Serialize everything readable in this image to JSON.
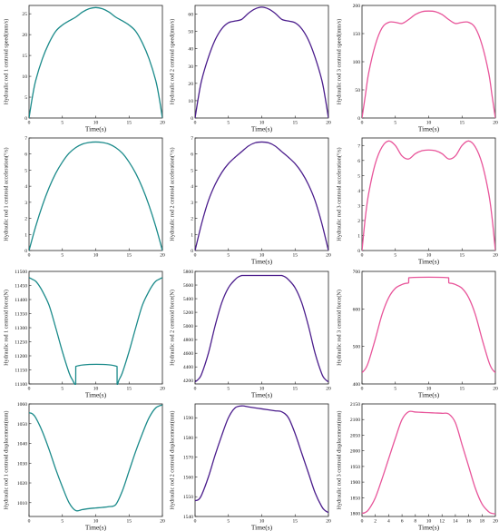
{
  "chart_data": [
    {
      "type": "line",
      "xlabel": "Time(s)",
      "ylabel": "Hydraulic rod 1 centroid speed(mm/s)",
      "color": "#1a8a8a",
      "xlim": [
        0,
        20
      ],
      "ylim": [
        0,
        27
      ],
      "xticks": [
        0,
        5,
        10,
        15,
        20
      ],
      "yticks": [
        0,
        5,
        10,
        15,
        20,
        25
      ],
      "x": [
        0,
        0.5,
        1,
        2,
        3,
        4,
        5,
        6,
        7,
        8,
        9,
        10,
        11,
        12,
        13,
        14,
        15,
        16,
        17,
        18,
        19,
        19.5,
        20
      ],
      "y": [
        0,
        5,
        9,
        14.2,
        18,
        20.8,
        22.3,
        23.3,
        24.2,
        25.4,
        26.2,
        26.5,
        26.2,
        25.4,
        24.2,
        23.3,
        22.3,
        20.8,
        18,
        14.2,
        9,
        5,
        0
      ]
    },
    {
      "type": "line",
      "xlabel": "Time(s)",
      "ylabel": "Hydraulic rod 2 centroid speed(mm/s)",
      "color": "#4b1d8c",
      "xlim": [
        0,
        20
      ],
      "ylim": [
        0,
        65
      ],
      "xticks": [
        0,
        5,
        10,
        15,
        20
      ],
      "yticks": [
        0,
        10,
        20,
        30,
        40,
        50,
        60
      ],
      "x": [
        0,
        0.5,
        1,
        2,
        3,
        4,
        5,
        6,
        7,
        8,
        9,
        10,
        11,
        12,
        13,
        14,
        15,
        16,
        17,
        18,
        19,
        19.5,
        20
      ],
      "y": [
        0,
        12,
        22,
        35,
        45,
        51.5,
        55,
        56,
        57,
        60.5,
        63,
        64,
        63,
        60.5,
        57,
        56,
        55,
        51.5,
        45,
        35,
        22,
        12,
        0
      ]
    },
    {
      "type": "line",
      "xlabel": "Time(s)",
      "ylabel": "Hydraulic rod 3 centroid speed(mm/s)",
      "color": "#e8559a",
      "xlim": [
        0,
        20
      ],
      "ylim": [
        0,
        200
      ],
      "xticks": [
        0,
        5,
        10,
        15,
        20
      ],
      "yticks": [
        0,
        50,
        100,
        150,
        200
      ],
      "x": [
        0,
        0.5,
        1,
        2,
        3,
        4,
        5,
        6,
        7,
        8,
        9,
        10,
        11,
        12,
        13,
        14,
        15,
        16,
        17,
        18,
        19,
        19.5,
        20
      ],
      "y": [
        0,
        40,
        80,
        130,
        160,
        170,
        170,
        168,
        175,
        184,
        189,
        190,
        189,
        184,
        175,
        168,
        170,
        170,
        160,
        130,
        80,
        40,
        0
      ]
    },
    {
      "type": "line",
      "xlabel": "",
      "ylabel": "Hydraulic rod 1 centroid acceleration(°/s)",
      "color": "#1a8a8a",
      "xlim": [
        0,
        20
      ],
      "ylim": [
        0,
        7
      ],
      "xticks": [
        0,
        5,
        10,
        15,
        20
      ],
      "yticks": [
        0,
        1,
        2,
        3,
        4,
        5,
        6,
        7
      ],
      "x": [
        0,
        1,
        2,
        3,
        4,
        5,
        6,
        7,
        8,
        9,
        10,
        11,
        12,
        13,
        14,
        15,
        16,
        17,
        18,
        19,
        20
      ],
      "y": [
        0,
        1.5,
        2.8,
        3.9,
        4.8,
        5.5,
        6.05,
        6.4,
        6.62,
        6.72,
        6.75,
        6.72,
        6.62,
        6.4,
        6.05,
        5.5,
        4.8,
        3.9,
        2.8,
        1.5,
        0
      ]
    },
    {
      "type": "line",
      "xlabel": "Time(s)",
      "ylabel": "Hydraulic rod 2 centroid acceleration(°/s)",
      "color": "#4b1d8c",
      "xlim": [
        0,
        20
      ],
      "ylim": [
        0,
        7
      ],
      "xticks": [
        0,
        5,
        10,
        15,
        20
      ],
      "yticks": [
        0,
        1,
        2,
        3,
        4,
        5,
        6,
        7
      ],
      "x": [
        0,
        1,
        2,
        3,
        4,
        5,
        6,
        7,
        8,
        9,
        10,
        11,
        12,
        13,
        14,
        15,
        16,
        17,
        18,
        19,
        20
      ],
      "y": [
        0,
        1.7,
        3.1,
        4.1,
        4.85,
        5.4,
        5.8,
        6.15,
        6.5,
        6.7,
        6.75,
        6.7,
        6.5,
        6.15,
        5.8,
        5.4,
        4.85,
        4.1,
        3.1,
        1.7,
        0
      ]
    },
    {
      "type": "line",
      "xlabel": "Time(s)",
      "ylabel": "Hydraulic rod 3 centroid acceleration(°/s)",
      "color": "#e8559a",
      "xlim": [
        0,
        20
      ],
      "ylim": [
        0,
        7.5
      ],
      "xticks": [
        0,
        5,
        10,
        15,
        20
      ],
      "yticks": [
        0,
        1,
        2,
        3,
        4,
        5,
        6,
        7
      ],
      "x": [
        0,
        0.5,
        1,
        2,
        3,
        4,
        5,
        6,
        7,
        8,
        9,
        10,
        11,
        12,
        13,
        14,
        15,
        16,
        17,
        18,
        19,
        19.5,
        20
      ],
      "y": [
        0,
        2.2,
        3.8,
        5.8,
        6.9,
        7.3,
        7.0,
        6.3,
        6.1,
        6.45,
        6.65,
        6.7,
        6.65,
        6.45,
        6.1,
        6.3,
        7.0,
        7.3,
        6.9,
        5.8,
        3.8,
        2.2,
        0
      ]
    },
    {
      "type": "line",
      "xlabel": "Time(s)",
      "ylabel": "Hydraulic rod 1 centroid force(N)",
      "color": "#1a8a8a",
      "xlim": [
        0,
        20
      ],
      "ylim": [
        11100,
        11500
      ],
      "xticks": [
        0,
        5,
        10,
        15,
        20
      ],
      "yticks": [
        11100,
        11150,
        11200,
        11250,
        11300,
        11350,
        11400,
        11450,
        11500
      ],
      "x": [
        0,
        0.5,
        1,
        1.5,
        2,
        3,
        4,
        5,
        6,
        6.5,
        7,
        7.01,
        13.2,
        13.21,
        13.5,
        14,
        15,
        16,
        17,
        18,
        18.5,
        19,
        19.5,
        20
      ],
      "y": [
        11478,
        11472,
        11465,
        11450,
        11430,
        11380,
        11300,
        11215,
        11140,
        11115,
        11100,
        11162,
        11162,
        11100,
        11115,
        11140,
        11215,
        11300,
        11380,
        11430,
        11450,
        11465,
        11472,
        11478
      ]
    },
    {
      "type": "line",
      "xlabel": "Time(s)",
      "ylabel": "Hydraulic rod 2 centroid force(N)",
      "color": "#4b1d8c",
      "xlim": [
        0,
        20
      ],
      "ylim": [
        4150,
        5800
      ],
      "xticks": [
        0,
        5,
        10,
        15,
        20
      ],
      "yticks": [
        4200,
        4400,
        4600,
        4800,
        5000,
        5200,
        5400,
        5600,
        5800
      ],
      "x": [
        0,
        0.5,
        1,
        2,
        3,
        4,
        5,
        6,
        6.5,
        7,
        7.01,
        13,
        13.01,
        13.5,
        14,
        15,
        16,
        17,
        18,
        19,
        19.5,
        20
      ],
      "y": [
        4180,
        4220,
        4300,
        4600,
        5000,
        5340,
        5560,
        5680,
        5720,
        5740,
        5740,
        5740,
        5740,
        5720,
        5680,
        5560,
        5340,
        5000,
        4600,
        4300,
        4220,
        4180
      ]
    },
    {
      "type": "line",
      "xlabel": "Time(s)",
      "ylabel": "Hydraulic rod 3 centroid force(N)",
      "color": "#e8559a",
      "xlim": [
        0,
        20
      ],
      "ylim": [
        400,
        700
      ],
      "xticks": [
        0,
        5,
        10,
        15,
        20
      ],
      "yticks": [
        400,
        500,
        600,
        700
      ],
      "x": [
        0,
        0.5,
        1,
        2,
        3,
        4,
        5,
        6,
        6.5,
        7,
        7.01,
        13,
        13.01,
        13.5,
        14,
        15,
        16,
        17,
        18,
        19,
        19.5,
        20
      ],
      "y": [
        430,
        440,
        460,
        520,
        585,
        630,
        655,
        665,
        668,
        670,
        683,
        683,
        670,
        668,
        665,
        655,
        630,
        585,
        520,
        460,
        440,
        430
      ]
    },
    {
      "type": "line",
      "xlabel": "Time(s)",
      "ylabel": "Hydraulic rod 1 centroid displacement(mm)",
      "color": "#1a8a8a",
      "xlim": [
        0,
        20
      ],
      "ylim": [
        1003,
        1060
      ],
      "xticks": [
        0,
        5,
        10,
        15,
        20
      ],
      "yticks": [
        1010,
        1020,
        1030,
        1040,
        1050,
        1060
      ],
      "x": [
        0,
        0.5,
        1,
        2,
        3,
        4,
        5,
        6,
        7,
        8,
        9,
        10,
        11,
        12,
        13,
        14,
        15,
        16,
        17,
        18,
        19,
        20
      ],
      "y": [
        1055.5,
        1055,
        1053,
        1046,
        1037,
        1027,
        1018,
        1010,
        1006,
        1006.5,
        1007,
        1007.3,
        1007.6,
        1008,
        1009,
        1016,
        1026,
        1036,
        1045,
        1053,
        1058,
        1059.5
      ]
    },
    {
      "type": "line",
      "xlabel": "Time(s)",
      "ylabel": "Hydraulic rod 2 centroid displacement(mm)",
      "color": "#4b1d8c",
      "xlim": [
        0,
        20
      ],
      "ylim": [
        1540,
        1597
      ],
      "xticks": [
        0,
        5,
        10,
        15,
        20
      ],
      "yticks": [
        1540,
        1550,
        1560,
        1570,
        1580,
        1590
      ],
      "x": [
        0,
        0.5,
        1,
        2,
        3,
        4,
        5,
        6,
        7,
        8,
        9,
        10,
        11,
        12,
        13,
        14,
        15,
        16,
        17,
        18,
        19,
        19.5,
        20
      ],
      "y": [
        1548,
        1548.5,
        1551,
        1560,
        1571,
        1581,
        1590,
        1595,
        1596,
        1595.5,
        1595,
        1594.5,
        1594,
        1593.5,
        1593,
        1590,
        1582,
        1572,
        1562,
        1552,
        1545,
        1543,
        1542
      ]
    },
    {
      "type": "line",
      "xlabel": "Time(s)",
      "ylabel": "Hydraulic rod 3 centroid displacement(mm)",
      "color": "#e8559a",
      "xlim": [
        0,
        20
      ],
      "ylim": [
        1790,
        2150
      ],
      "xticks": [
        0,
        2,
        4,
        6,
        8,
        10,
        12,
        14,
        16,
        18,
        20
      ],
      "yticks": [
        1800,
        1850,
        1900,
        1950,
        2000,
        2050,
        2100,
        2150
      ],
      "x": [
        0,
        0.5,
        1,
        2,
        3,
        4,
        5,
        6,
        7,
        8,
        9,
        10,
        11,
        12,
        13,
        14,
        15,
        16,
        17,
        18,
        19,
        19.5,
        20
      ],
      "y": [
        1800,
        1803,
        1812,
        1850,
        1910,
        1975,
        2040,
        2100,
        2125,
        2124,
        2123,
        2122,
        2121,
        2120,
        2118,
        2090,
        2020,
        1950,
        1880,
        1830,
        1805,
        1800,
        1798
      ]
    }
  ]
}
